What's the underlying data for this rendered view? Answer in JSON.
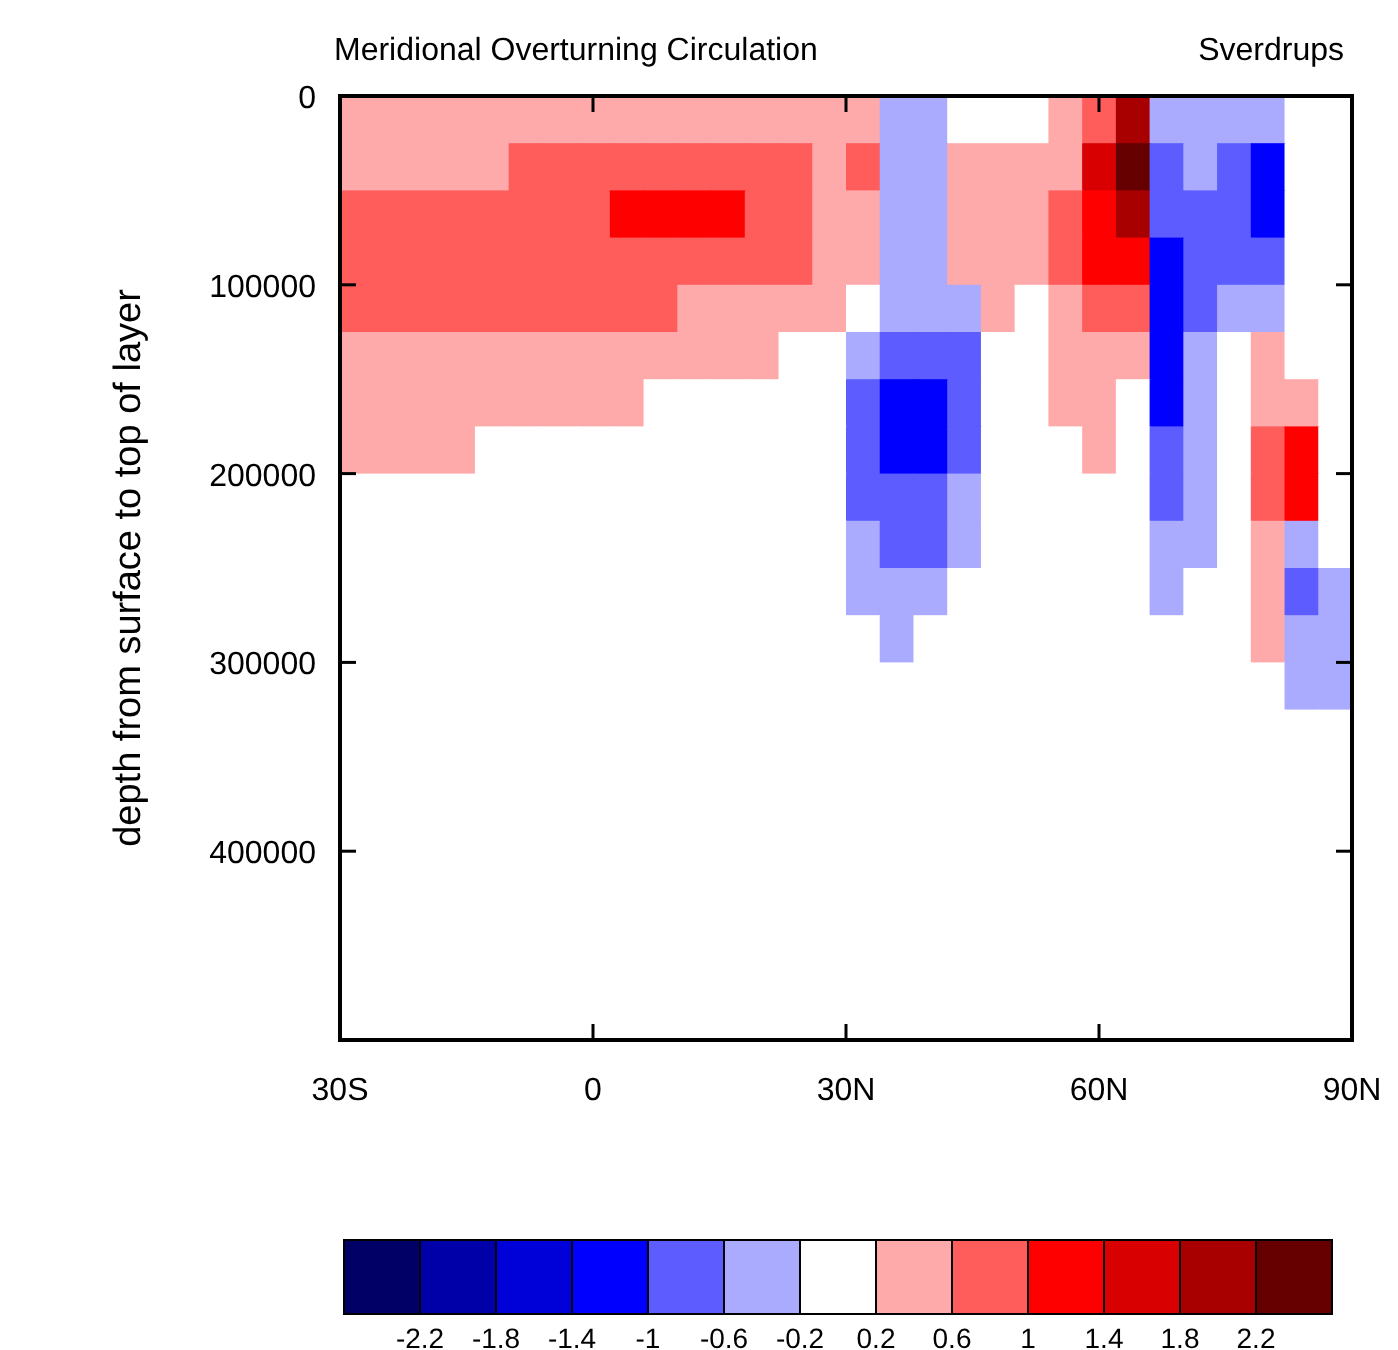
{
  "chart_data": {
    "type": "heatmap",
    "title": "Meridional Overturning Circulation",
    "subtitle": "Sverdrups",
    "ylabel": "depth from surface to top of layer",
    "xlim": [
      -30,
      90
    ],
    "xticks": [
      {
        "value": -30,
        "label": "30S"
      },
      0,
      {
        "value": 30,
        "label": "30N"
      },
      {
        "value": 60,
        "label": "60N"
      },
      {
        "value": 90,
        "label": "90N"
      }
    ],
    "ylim": [
      500000,
      0
    ],
    "yticks": [
      0,
      100000,
      200000,
      300000,
      400000
    ],
    "clim": [
      -2.6,
      2.6
    ],
    "cticks": [
      -2.2,
      -1.8,
      -1.4,
      -1,
      -0.6,
      -0.2,
      0.2,
      0.6,
      1,
      1.4,
      1.8,
      2.2
    ],
    "colors": [
      "#000066",
      "#0000a8",
      "#0000d8",
      "#0000ff",
      "#5c5cff",
      "#aaaaff",
      "#ffffff",
      "#ffaaaa",
      "#ff5c5c",
      "#ff0000",
      "#d80000",
      "#a80000",
      "#660000"
    ],
    "cells": [
      [
        0.4,
        0.4,
        0.4,
        0.4,
        0.4,
        0.4,
        0.4,
        0.4,
        0.4,
        0.4,
        0.4,
        0.4,
        0.4,
        0.4,
        0.4,
        0.4,
        -0.4,
        -0.4,
        0,
        0,
        0,
        0.4,
        0.8,
        2.0,
        -0.4,
        -0.4,
        -0.4,
        -0.4,
        0,
        0
      ],
      [
        0.4,
        0.4,
        0.4,
        0.4,
        0.4,
        0.8,
        0.8,
        0.8,
        0.8,
        0.8,
        0.8,
        0.8,
        0.8,
        0.8,
        0.4,
        0.8,
        -0.4,
        -0.4,
        0.4,
        0.4,
        0.4,
        0.4,
        1.6,
        2.4,
        -0.8,
        -0.4,
        -0.8,
        -1.2,
        0,
        0
      ],
      [
        0.8,
        0.8,
        0.8,
        0.8,
        0.8,
        0.8,
        0.8,
        0.8,
        1.2,
        1.2,
        1.2,
        1.2,
        0.8,
        0.8,
        0.4,
        0.4,
        -0.4,
        -0.4,
        0.4,
        0.4,
        0.4,
        0.8,
        1.2,
        2.0,
        -0.8,
        -0.8,
        -0.8,
        -1.2,
        0,
        0
      ],
      [
        0.8,
        0.8,
        0.8,
        0.8,
        0.8,
        0.8,
        0.8,
        0.8,
        0.8,
        0.8,
        0.8,
        0.8,
        0.8,
        0.8,
        0.4,
        0.4,
        -0.4,
        -0.4,
        0.4,
        0.4,
        0.4,
        0.8,
        1.2,
        1.2,
        -1.2,
        -0.8,
        -0.8,
        -0.8,
        0,
        0
      ],
      [
        0.8,
        0.8,
        0.8,
        0.8,
        0.8,
        0.8,
        0.8,
        0.8,
        0.8,
        0.8,
        0.4,
        0.4,
        0.4,
        0.4,
        0.4,
        0,
        -0.4,
        -0.4,
        -0.4,
        0.4,
        0,
        0.4,
        0.8,
        0.8,
        -1.2,
        -0.8,
        -0.4,
        -0.4,
        0,
        0
      ],
      [
        0.4,
        0.4,
        0.4,
        0.4,
        0.4,
        0.4,
        0.4,
        0.4,
        0.4,
        0.4,
        0.4,
        0.4,
        0.4,
        0,
        0,
        -0.4,
        -0.8,
        -0.8,
        -0.8,
        0,
        0,
        0.4,
        0.4,
        0.4,
        -1.2,
        -0.4,
        0,
        0.4,
        0,
        0
      ],
      [
        0.4,
        0.4,
        0.4,
        0.4,
        0.4,
        0.4,
        0.4,
        0.4,
        0.4,
        0,
        0,
        0,
        0,
        0,
        0,
        -0.8,
        -1.2,
        -1.2,
        -0.8,
        0,
        0,
        0.4,
        0.4,
        0,
        -1.2,
        -0.4,
        0,
        0.4,
        0.4,
        0
      ],
      [
        0.4,
        0.4,
        0.4,
        0.4,
        0,
        0,
        0,
        0,
        0,
        0,
        0,
        0,
        0,
        0,
        0,
        -0.8,
        -1.2,
        -1.2,
        -0.8,
        0,
        0,
        0,
        0.4,
        0,
        -0.8,
        -0.4,
        0,
        0.8,
        1.2,
        0
      ],
      [
        0,
        0,
        0,
        0,
        0,
        0,
        0,
        0,
        0,
        0,
        0,
        0,
        0,
        0,
        0,
        -0.8,
        -0.8,
        -0.8,
        -0.4,
        0,
        0,
        0,
        0,
        0,
        -0.8,
        -0.4,
        0,
        0.8,
        1.2,
        0
      ],
      [
        0,
        0,
        0,
        0,
        0,
        0,
        0,
        0,
        0,
        0,
        0,
        0,
        0,
        0,
        0,
        -0.4,
        -0.8,
        -0.8,
        -0.4,
        0,
        0,
        0,
        0,
        0,
        -0.4,
        -0.4,
        0,
        0.4,
        -0.4,
        0
      ],
      [
        0,
        0,
        0,
        0,
        0,
        0,
        0,
        0,
        0,
        0,
        0,
        0,
        0,
        0,
        0,
        -0.4,
        -0.4,
        -0.4,
        0,
        0,
        0,
        0,
        0,
        0,
        -0.4,
        0,
        0,
        0.4,
        -0.8,
        -0.4
      ],
      [
        0,
        0,
        0,
        0,
        0,
        0,
        0,
        0,
        0,
        0,
        0,
        0,
        0,
        0,
        0,
        0,
        -0.4,
        0,
        0,
        0,
        0,
        0,
        0,
        0,
        0,
        0,
        0,
        0.4,
        -0.4,
        -0.4
      ],
      [
        0,
        0,
        0,
        0,
        0,
        0,
        0,
        0,
        0,
        0,
        0,
        0,
        0,
        0,
        0,
        0,
        0,
        0,
        0,
        0,
        0,
        0,
        0,
        0,
        0,
        0,
        0,
        0,
        -0.4,
        -0.4
      ],
      [
        0,
        0,
        0,
        0,
        0,
        0,
        0,
        0,
        0,
        0,
        0,
        0,
        0,
        0,
        0,
        0,
        0,
        0,
        0,
        0,
        0,
        0,
        0,
        0,
        0,
        0,
        0,
        0,
        0,
        0
      ],
      [
        0,
        0,
        0,
        0,
        0,
        0,
        0,
        0,
        0,
        0,
        0,
        0,
        0,
        0,
        0,
        0,
        0,
        0,
        0,
        0,
        0,
        0,
        0,
        0,
        0,
        0,
        0,
        0,
        0,
        0
      ],
      [
        0,
        0,
        0,
        0,
        0,
        0,
        0,
        0,
        0,
        0,
        0,
        0,
        0,
        0,
        0,
        0,
        0,
        0,
        0,
        0,
        0,
        0,
        0,
        0,
        0,
        0,
        0,
        0,
        0,
        0
      ],
      [
        0,
        0,
        0,
        0,
        0,
        0,
        0,
        0,
        0,
        0,
        0,
        0,
        0,
        0,
        0,
        0,
        0,
        0,
        0,
        0,
        0,
        0,
        0,
        0,
        0,
        0,
        0,
        0,
        0,
        0
      ],
      [
        0,
        0,
        0,
        0,
        0,
        0,
        0,
        0,
        0,
        0,
        0,
        0,
        0,
        0,
        0,
        0,
        0,
        0,
        0,
        0,
        0,
        0,
        0,
        0,
        0,
        0,
        0,
        0,
        0,
        0
      ],
      [
        0,
        0,
        0,
        0,
        0,
        0,
        0,
        0,
        0,
        0,
        0,
        0,
        0,
        0,
        0,
        0,
        0,
        0,
        0,
        0,
        0,
        0,
        0,
        0,
        0,
        0,
        0,
        0,
        0,
        0
      ],
      [
        0,
        0,
        0,
        0,
        0,
        0,
        0,
        0,
        0,
        0,
        0,
        0,
        0,
        0,
        0,
        0,
        0,
        0,
        0,
        0,
        0,
        0,
        0,
        0,
        0,
        0,
        0,
        0,
        0,
        0
      ]
    ]
  }
}
